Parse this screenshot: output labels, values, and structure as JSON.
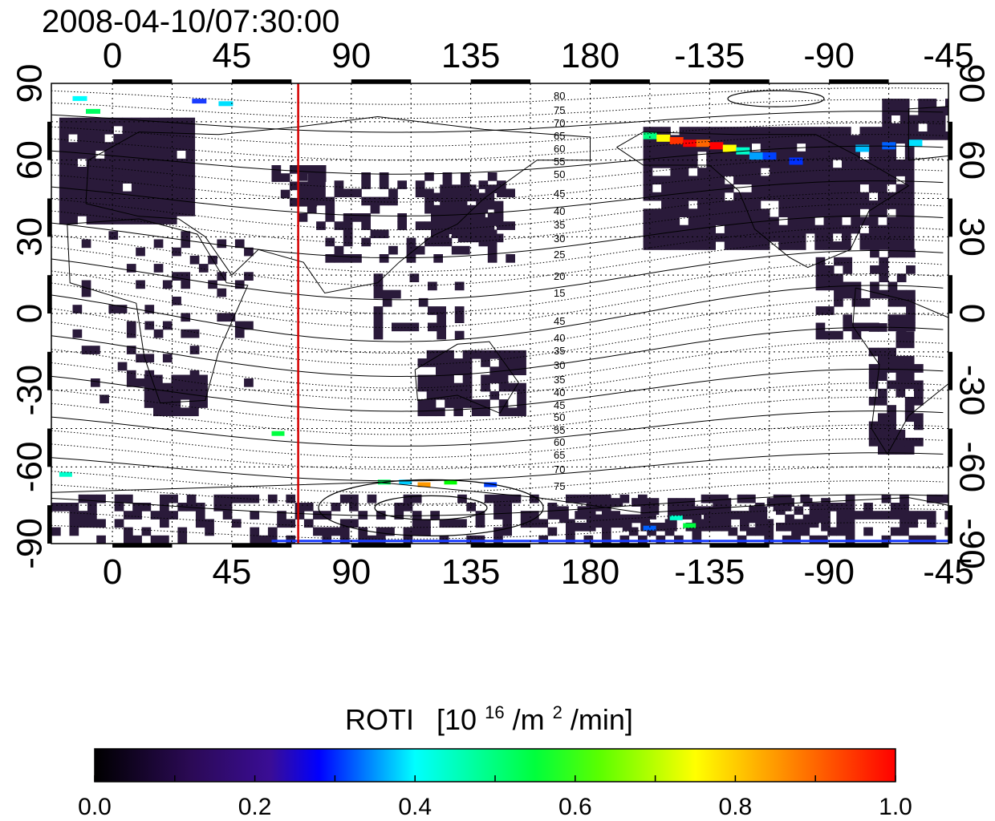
{
  "header": {
    "timestamp": "2008-04-10/07:30:00"
  },
  "map": {
    "projection": "cylindrical",
    "lon_range": [
      -23,
      315
    ],
    "lat_range": [
      -90,
      90
    ],
    "top_tick_labels": [
      "0",
      "45",
      "90",
      "135",
      "180",
      "-135",
      "-90",
      "-45"
    ],
    "bottom_tick_labels": [
      "0",
      "45",
      "90",
      "135",
      "180",
      "-135",
      "-90",
      "-45"
    ],
    "left_tick_labels": [
      "-90",
      "-60",
      "-30",
      "0",
      "30",
      "60",
      "90"
    ],
    "right_tick_labels": [
      "-90",
      "-60",
      "-30",
      "0",
      "30",
      "60",
      "90"
    ],
    "terminator_line": {
      "lon": 70,
      "color": "#d40000"
    },
    "contour_labels_north": [
      "80",
      "75",
      "70",
      "65",
      "60",
      "55",
      "50",
      "45",
      "40",
      "35",
      "30",
      "25",
      "20",
      "15"
    ],
    "contour_labels_south": [
      "45",
      "40",
      "35",
      "30",
      "35",
      "40",
      "45",
      "50",
      "55",
      "60",
      "65",
      "70",
      "75"
    ],
    "grid": true,
    "coastlines": true,
    "roti_colormap": "dark-purple-blue-cyan-green-yellow-red",
    "storm_region": "high-latitude North America / Alaska auroral oval",
    "background_color": "#ffffff",
    "no_data_color": "#ffffff",
    "low_roti_color": "#2a1a3a"
  },
  "colorbar": {
    "title": "ROTI",
    "units_open": "[10",
    "units_exp1": "16",
    "units_mid": "/m",
    "units_exp2": "2",
    "units_close": "/min]",
    "range": [
      0.0,
      1.0
    ],
    "tick_labels": [
      "0.0",
      "0.2",
      "0.4",
      "0.6",
      "0.8",
      "1.0"
    ],
    "colors": [
      "#000000",
      "#3a0a6e",
      "#0000ff",
      "#00ffff",
      "#00ff00",
      "#ffff00",
      "#ff0000"
    ]
  }
}
